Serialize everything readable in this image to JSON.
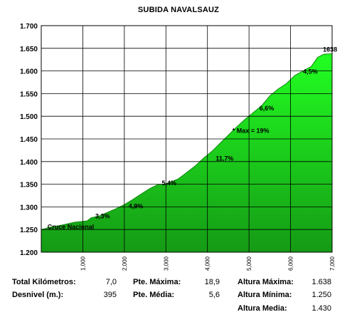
{
  "chart_data": {
    "type": "area",
    "title": "SUBIDA NAVALSAUZ",
    "xlabel": "",
    "ylabel": "",
    "xlim": [
      0,
      7
    ],
    "ylim": [
      1200,
      1700
    ],
    "x_ticks": [
      "1,000",
      "2,000",
      "3,000",
      "4,000",
      "5,000",
      "6,000",
      "7,000"
    ],
    "y_ticks": [
      "1.200",
      "1.250",
      "1.300",
      "1.350",
      "1.400",
      "1.450",
      "1.500",
      "1.550",
      "1.600",
      "1.650",
      "1.700"
    ],
    "grid": true,
    "fill_color": "#18d018",
    "x": [
      0,
      0.1,
      0.2,
      0.4,
      0.6,
      0.8,
      1.0,
      1.1,
      1.2,
      1.4,
      1.6,
      1.8,
      2.0,
      2.2,
      2.4,
      2.6,
      2.8,
      2.95,
      3.1,
      3.3,
      3.5,
      3.7,
      3.9,
      4.1,
      4.3,
      4.5,
      4.7,
      4.9,
      5.1,
      5.3,
      5.5,
      5.7,
      5.9,
      6.1,
      6.3,
      6.5,
      6.65,
      6.8,
      7.0
    ],
    "y": [
      1250,
      1252,
      1255,
      1258,
      1262,
      1266,
      1268,
      1269,
      1276,
      1280,
      1288,
      1296,
      1305,
      1316,
      1328,
      1340,
      1349,
      1350,
      1354,
      1362,
      1376,
      1390,
      1407,
      1422,
      1440,
      1458,
      1476,
      1493,
      1508,
      1523,
      1545,
      1560,
      1572,
      1590,
      1600,
      1610,
      1630,
      1637,
      1638
    ],
    "annotations": [
      {
        "text": "Cruce Nacional",
        "x": 0.15,
        "y": 1251
      },
      {
        "text": "3,3%",
        "x": 1.3,
        "y": 1275
      },
      {
        "text": "4,9%",
        "x": 2.1,
        "y": 1297
      },
      {
        "text": "5,4%",
        "x": 2.9,
        "y": 1348
      },
      {
        "text": "11,7%",
        "x": 4.2,
        "y": 1402
      },
      {
        "text": "* Max = 19%",
        "x": 4.6,
        "y": 1463
      },
      {
        "text": "6,6%",
        "x": 5.25,
        "y": 1513
      },
      {
        "text": "4,5%",
        "x": 6.3,
        "y": 1594
      },
      {
        "text": "1638",
        "x": 6.78,
        "y": 1643
      }
    ]
  },
  "stats": {
    "total_km_label": "Total Kilómetros:",
    "total_km_value": "7,0",
    "desnivel_label": "Desnivel (m.):",
    "desnivel_value": "395",
    "pte_max_label": "Pte. Máxima:",
    "pte_max_value": "18,9",
    "pte_media_label": "Pte. Média:",
    "pte_media_value": "5,6",
    "alt_max_label": "Altura Máxima:",
    "alt_max_value": "1.638",
    "alt_min_label": "Altura Mínima:",
    "alt_min_value": "1.250",
    "alt_media_label": "Altura Media:",
    "alt_media_value": "1.430"
  }
}
